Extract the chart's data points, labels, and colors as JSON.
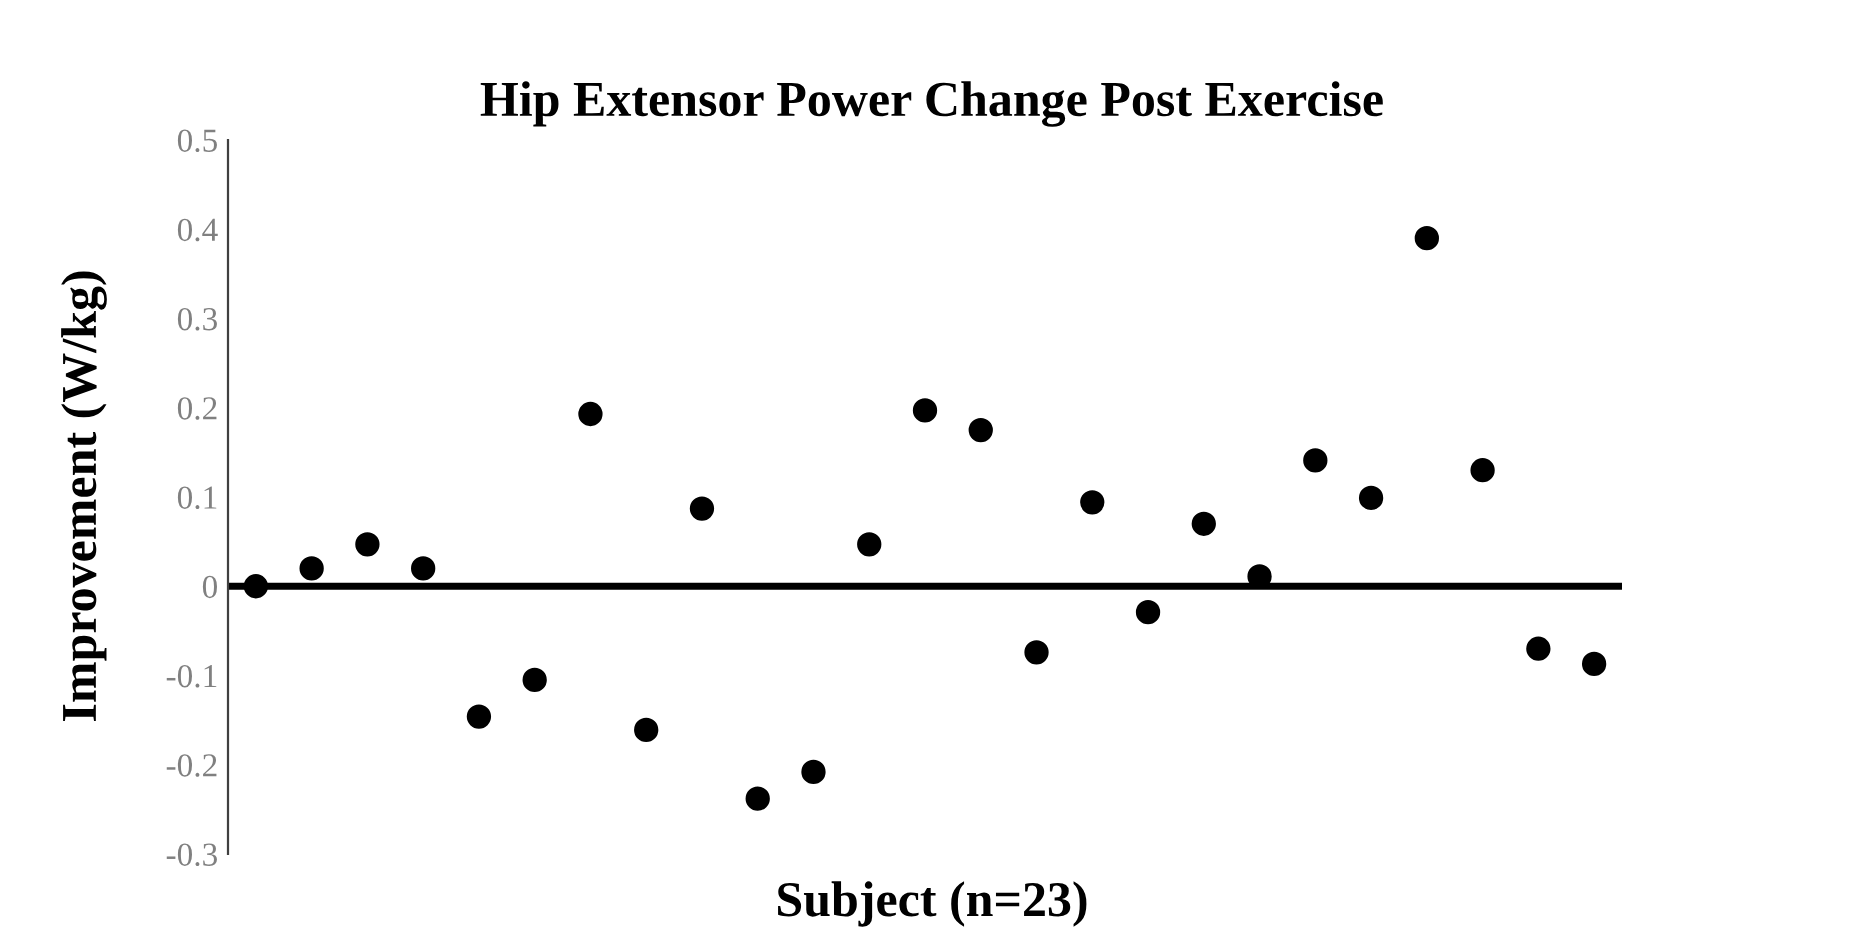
{
  "chart_data": {
    "type": "scatter",
    "title": "Hip Extensor Power Change Post Exercise",
    "xlabel": "Subject (n=23)",
    "ylabel": "Improvement (W/kg)",
    "categories": [
      null,
      null,
      null,
      null,
      null,
      null,
      null,
      null,
      null,
      null,
      null,
      null,
      null,
      null,
      null,
      null,
      null,
      null,
      null,
      null,
      null,
      null,
      null,
      null,
      null
    ],
    "series": [
      {
        "color": "#000000",
        "values": [
          0.0,
          0.02,
          0.047,
          0.02,
          -0.146,
          -0.105,
          0.193,
          -0.161,
          0.087,
          -0.238,
          -0.208,
          0.047,
          0.197,
          0.175,
          -0.074,
          0.094,
          -0.029,
          0.07,
          0.011,
          0.141,
          0.099,
          0.39,
          0.13,
          -0.07,
          -0.087
        ]
      }
    ],
    "ylim": [
      -0.3,
      0.5
    ],
    "yticks": [
      -0.3,
      -0.2,
      -0.1,
      0,
      0.1,
      0.2,
      0.3,
      0.4,
      0.5
    ],
    "ref_lines": [
      {
        "axis": "y",
        "value": 0,
        "color": "#000000"
      }
    ],
    "tick_labels": "y",
    "grid": false,
    "legend": false,
    "marker": "circle"
  }
}
